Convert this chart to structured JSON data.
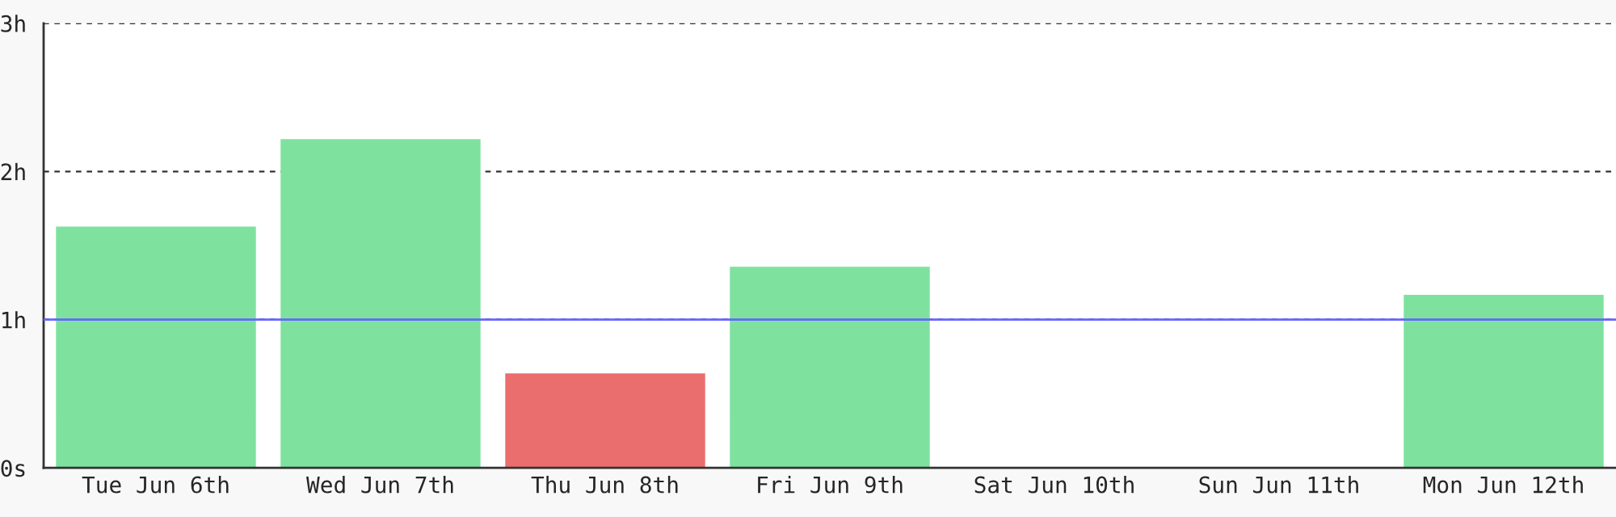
{
  "chart_data": {
    "type": "bar",
    "categories": [
      "Tue Jun 6th",
      "Wed Jun 7th",
      "Thu Jun 8th",
      "Fri Jun 9th",
      "Sat Jun 10th",
      "Sun Jun 11th",
      "Mon Jun 12th"
    ],
    "values": [
      1.62,
      2.21,
      0.63,
      1.35,
      null,
      null,
      1.16
    ],
    "colors": [
      "#7ee29e",
      "#7ee29e",
      "#ea6e6e",
      "#7ee29e",
      "#7ee29e",
      "#7ee29e",
      "#7ee29e"
    ],
    "ylim": [
      0,
      3
    ],
    "yticks": [
      {
        "value": 0,
        "label": "0s"
      },
      {
        "value": 1,
        "label": "1h"
      },
      {
        "value": 2,
        "label": "2h"
      },
      {
        "value": 3,
        "label": "3h"
      }
    ],
    "grid": "y",
    "ref_lines": [
      {
        "axis": "y",
        "value": 1,
        "color": "#6666ff",
        "line_style": "solid"
      }
    ]
  }
}
